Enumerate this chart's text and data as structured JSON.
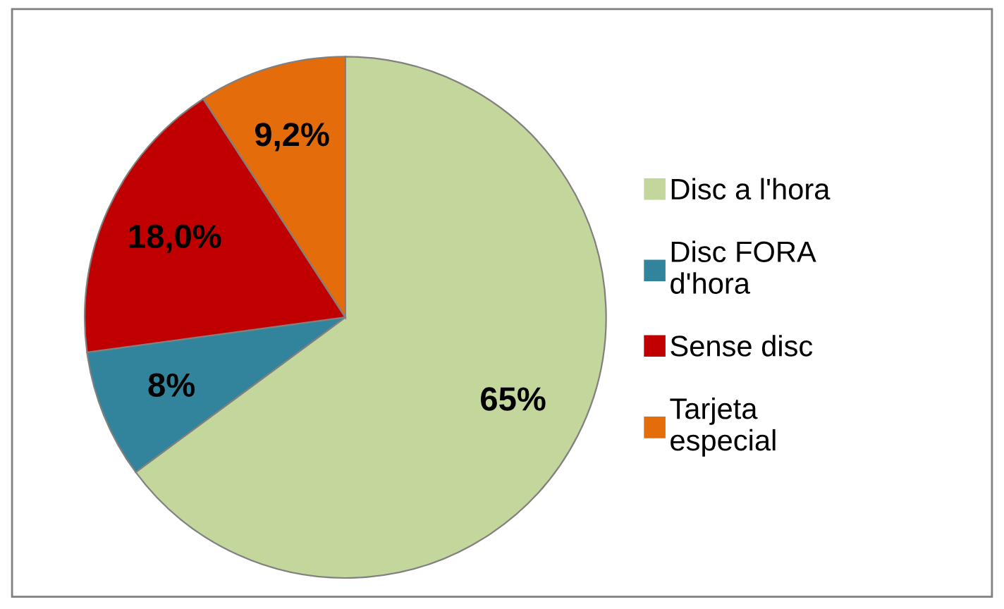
{
  "chart_data": {
    "type": "pie",
    "categories": [
      "Disc a l'hora",
      "Disc FORA d'hora",
      "Sense disc",
      "Tarjeta especial"
    ],
    "values": [
      65,
      8,
      18.0,
      9.2
    ],
    "value_labels": [
      "65%",
      "8%",
      "18,0%",
      "9,2%"
    ],
    "colors": [
      "#c3d69b",
      "#31849b",
      "#c00000",
      "#e46c0a"
    ],
    "legend": "right"
  }
}
